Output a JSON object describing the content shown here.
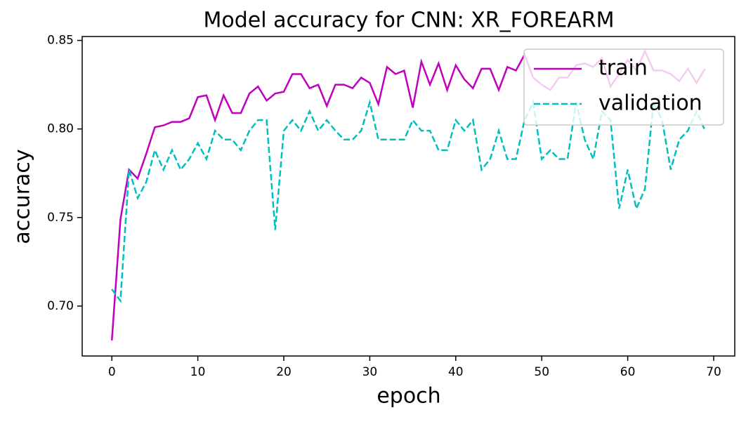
{
  "chart_data": {
    "type": "line",
    "title": "Model accuracy for CNN: XR_FOREARM",
    "x_label": "epoch",
    "y_label": "accuracy",
    "x": [
      0,
      1,
      2,
      3,
      4,
      5,
      6,
      7,
      8,
      9,
      10,
      11,
      12,
      13,
      14,
      15,
      16,
      17,
      18,
      19,
      20,
      21,
      22,
      23,
      24,
      25,
      26,
      27,
      28,
      29,
      30,
      31,
      32,
      33,
      34,
      35,
      36,
      37,
      38,
      39,
      40,
      41,
      42,
      43,
      44,
      45,
      46,
      47,
      48,
      49,
      50,
      51,
      52,
      53,
      54,
      55,
      56,
      57,
      58,
      59,
      60,
      61,
      62,
      63,
      64,
      65,
      66,
      67,
      68,
      69
    ],
    "series": [
      {
        "name": "train",
        "color": "#bf00bf",
        "dash": false,
        "values": [
          0.6806,
          0.749,
          0.777,
          0.772,
          0.786,
          0.801,
          0.802,
          0.804,
          0.804,
          0.806,
          0.818,
          0.819,
          0.805,
          0.819,
          0.809,
          0.809,
          0.82,
          0.824,
          0.816,
          0.82,
          0.821,
          0.831,
          0.831,
          0.823,
          0.825,
          0.813,
          0.825,
          0.825,
          0.823,
          0.829,
          0.826,
          0.814,
          0.835,
          0.831,
          0.833,
          0.812,
          0.838,
          0.825,
          0.837,
          0.822,
          0.836,
          0.828,
          0.823,
          0.834,
          0.834,
          0.822,
          0.835,
          0.833,
          0.842,
          0.829,
          0.825,
          0.822,
          0.829,
          0.829,
          0.836,
          0.837,
          0.835,
          0.84,
          0.824,
          0.831,
          0.839,
          0.833,
          0.844,
          0.833,
          0.833,
          0.831,
          0.827,
          0.834,
          0.826,
          0.834
        ]
      },
      {
        "name": "validation",
        "color": "#00bfbf",
        "dash": true,
        "values": [
          0.7095,
          0.703,
          0.777,
          0.761,
          0.77,
          0.788,
          0.777,
          0.788,
          0.777,
          0.783,
          0.792,
          0.783,
          0.799,
          0.794,
          0.794,
          0.788,
          0.799,
          0.805,
          0.805,
          0.743,
          0.799,
          0.805,
          0.799,
          0.81,
          0.799,
          0.805,
          0.799,
          0.794,
          0.794,
          0.799,
          0.815,
          0.794,
          0.794,
          0.794,
          0.794,
          0.805,
          0.799,
          0.799,
          0.788,
          0.788,
          0.805,
          0.799,
          0.805,
          0.777,
          0.783,
          0.799,
          0.783,
          0.783,
          0.805,
          0.815,
          0.783,
          0.788,
          0.783,
          0.783,
          0.815,
          0.794,
          0.783,
          0.81,
          0.805,
          0.755,
          0.777,
          0.755,
          0.766,
          0.815,
          0.805,
          0.777,
          0.794,
          0.799,
          0.81,
          0.799
        ]
      }
    ],
    "xlim": [
      -3.45,
      72.45
    ],
    "xticks": [
      0,
      10,
      20,
      30,
      40,
      50,
      60,
      70
    ],
    "ylim": [
      0.6718,
      0.8522
    ],
    "yticks": [
      {
        "value": 0.7,
        "label": "0.70"
      },
      0.75,
      {
        "value": 0.8,
        "label": "0.80"
      },
      0.85
    ],
    "legend": "upper right",
    "grid": false
  }
}
